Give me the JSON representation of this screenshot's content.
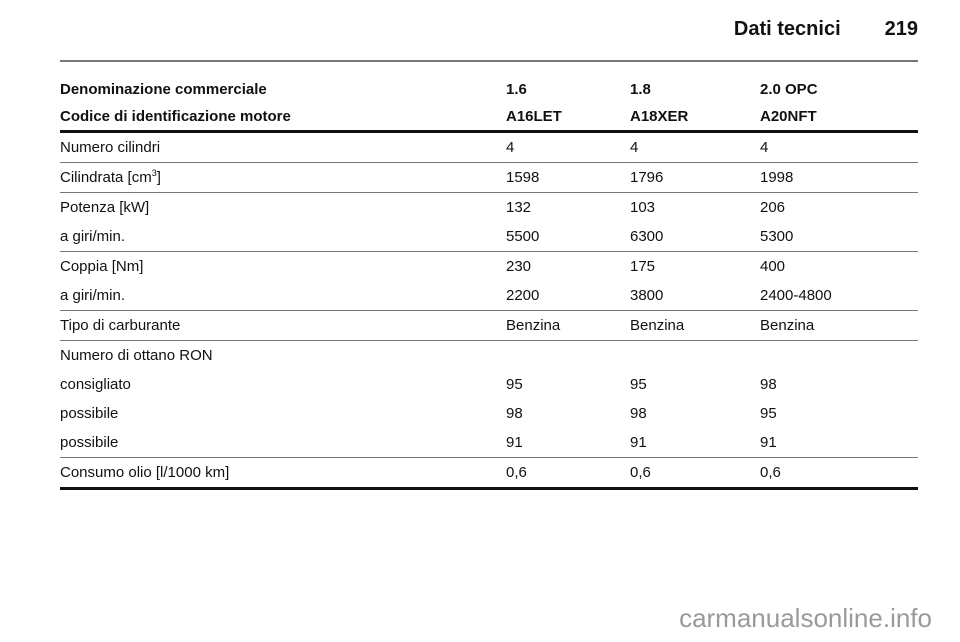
{
  "header": {
    "section": "Dati tecnici",
    "page": "219"
  },
  "table": {
    "head": [
      [
        "Denominazione commerciale",
        "1.6",
        "1.8",
        "2.0 OPC"
      ],
      [
        "Codice di identificazione motore",
        "A16LET",
        "A18XER",
        "A20NFT"
      ]
    ],
    "groups": [
      [
        [
          "Numero cilindri",
          "4",
          "4",
          "4"
        ]
      ],
      [
        [
          "Cilindrata [cm³]",
          "1598",
          "1796",
          "1998"
        ]
      ],
      [
        [
          "Potenza [kW]",
          "132",
          "103",
          "206"
        ],
        [
          "a giri/min.",
          "5500",
          "6300",
          "5300"
        ]
      ],
      [
        [
          "Coppia [Nm]",
          "230",
          "175",
          "400"
        ],
        [
          "a giri/min.",
          "2200",
          "3800",
          "2400-4800"
        ]
      ],
      [
        [
          "Tipo di carburante",
          "Benzina",
          "Benzina",
          "Benzina"
        ]
      ],
      [
        [
          "Numero di ottano RON",
          "",
          "",
          ""
        ],
        [
          "consigliato",
          "95",
          "95",
          "98"
        ],
        [
          "possibile",
          "98",
          "98",
          "95"
        ],
        [
          "possibile",
          "91",
          "91",
          "91"
        ]
      ],
      [
        [
          "Consumo olio [l/1000 km]",
          "0,6",
          "0,6",
          "0,6"
        ]
      ]
    ]
  },
  "watermark": "carmanualsonline.info"
}
